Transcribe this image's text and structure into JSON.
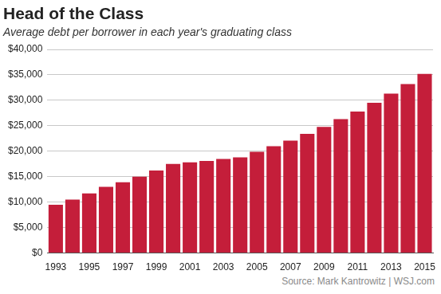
{
  "chart_data": {
    "type": "bar",
    "title": "Head of the Class",
    "subtitle": "Average debt per borrower in each year's graduating class",
    "source": "Source: Mark Kantrowitz | WSJ.com",
    "categories": [
      "1993",
      null,
      "1995",
      null,
      "1997",
      null,
      "1999",
      null,
      "2001",
      null,
      "2003",
      null,
      "2005",
      null,
      "2007",
      null,
      "2009",
      null,
      "2011",
      null,
      "2013",
      null,
      "2015"
    ],
    "values": [
      9500,
      10500,
      11700,
      13000,
      13900,
      15000,
      16200,
      17500,
      17800,
      18100,
      18500,
      18800,
      19900,
      21000,
      22100,
      23400,
      24800,
      26300,
      27800,
      29500,
      31300,
      33200,
      35200
    ],
    "color": "#c41e3a",
    "ylim": [
      0,
      40000
    ],
    "yticks": [
      {
        "value": 0,
        "label": "$0"
      },
      {
        "value": 5000,
        "label": "$5,000"
      },
      {
        "value": 10000,
        "label": "$10,000"
      },
      {
        "value": 15000,
        "label": "$15,000"
      },
      {
        "value": 20000,
        "label": "$20,000"
      },
      {
        "value": 25000,
        "label": "$25,000"
      },
      {
        "value": 30000,
        "label": "$30,000"
      },
      {
        "value": 35000,
        "label": "$35,000"
      },
      {
        "value": 40000,
        "label": "$40,000"
      }
    ],
    "grid": true
  }
}
